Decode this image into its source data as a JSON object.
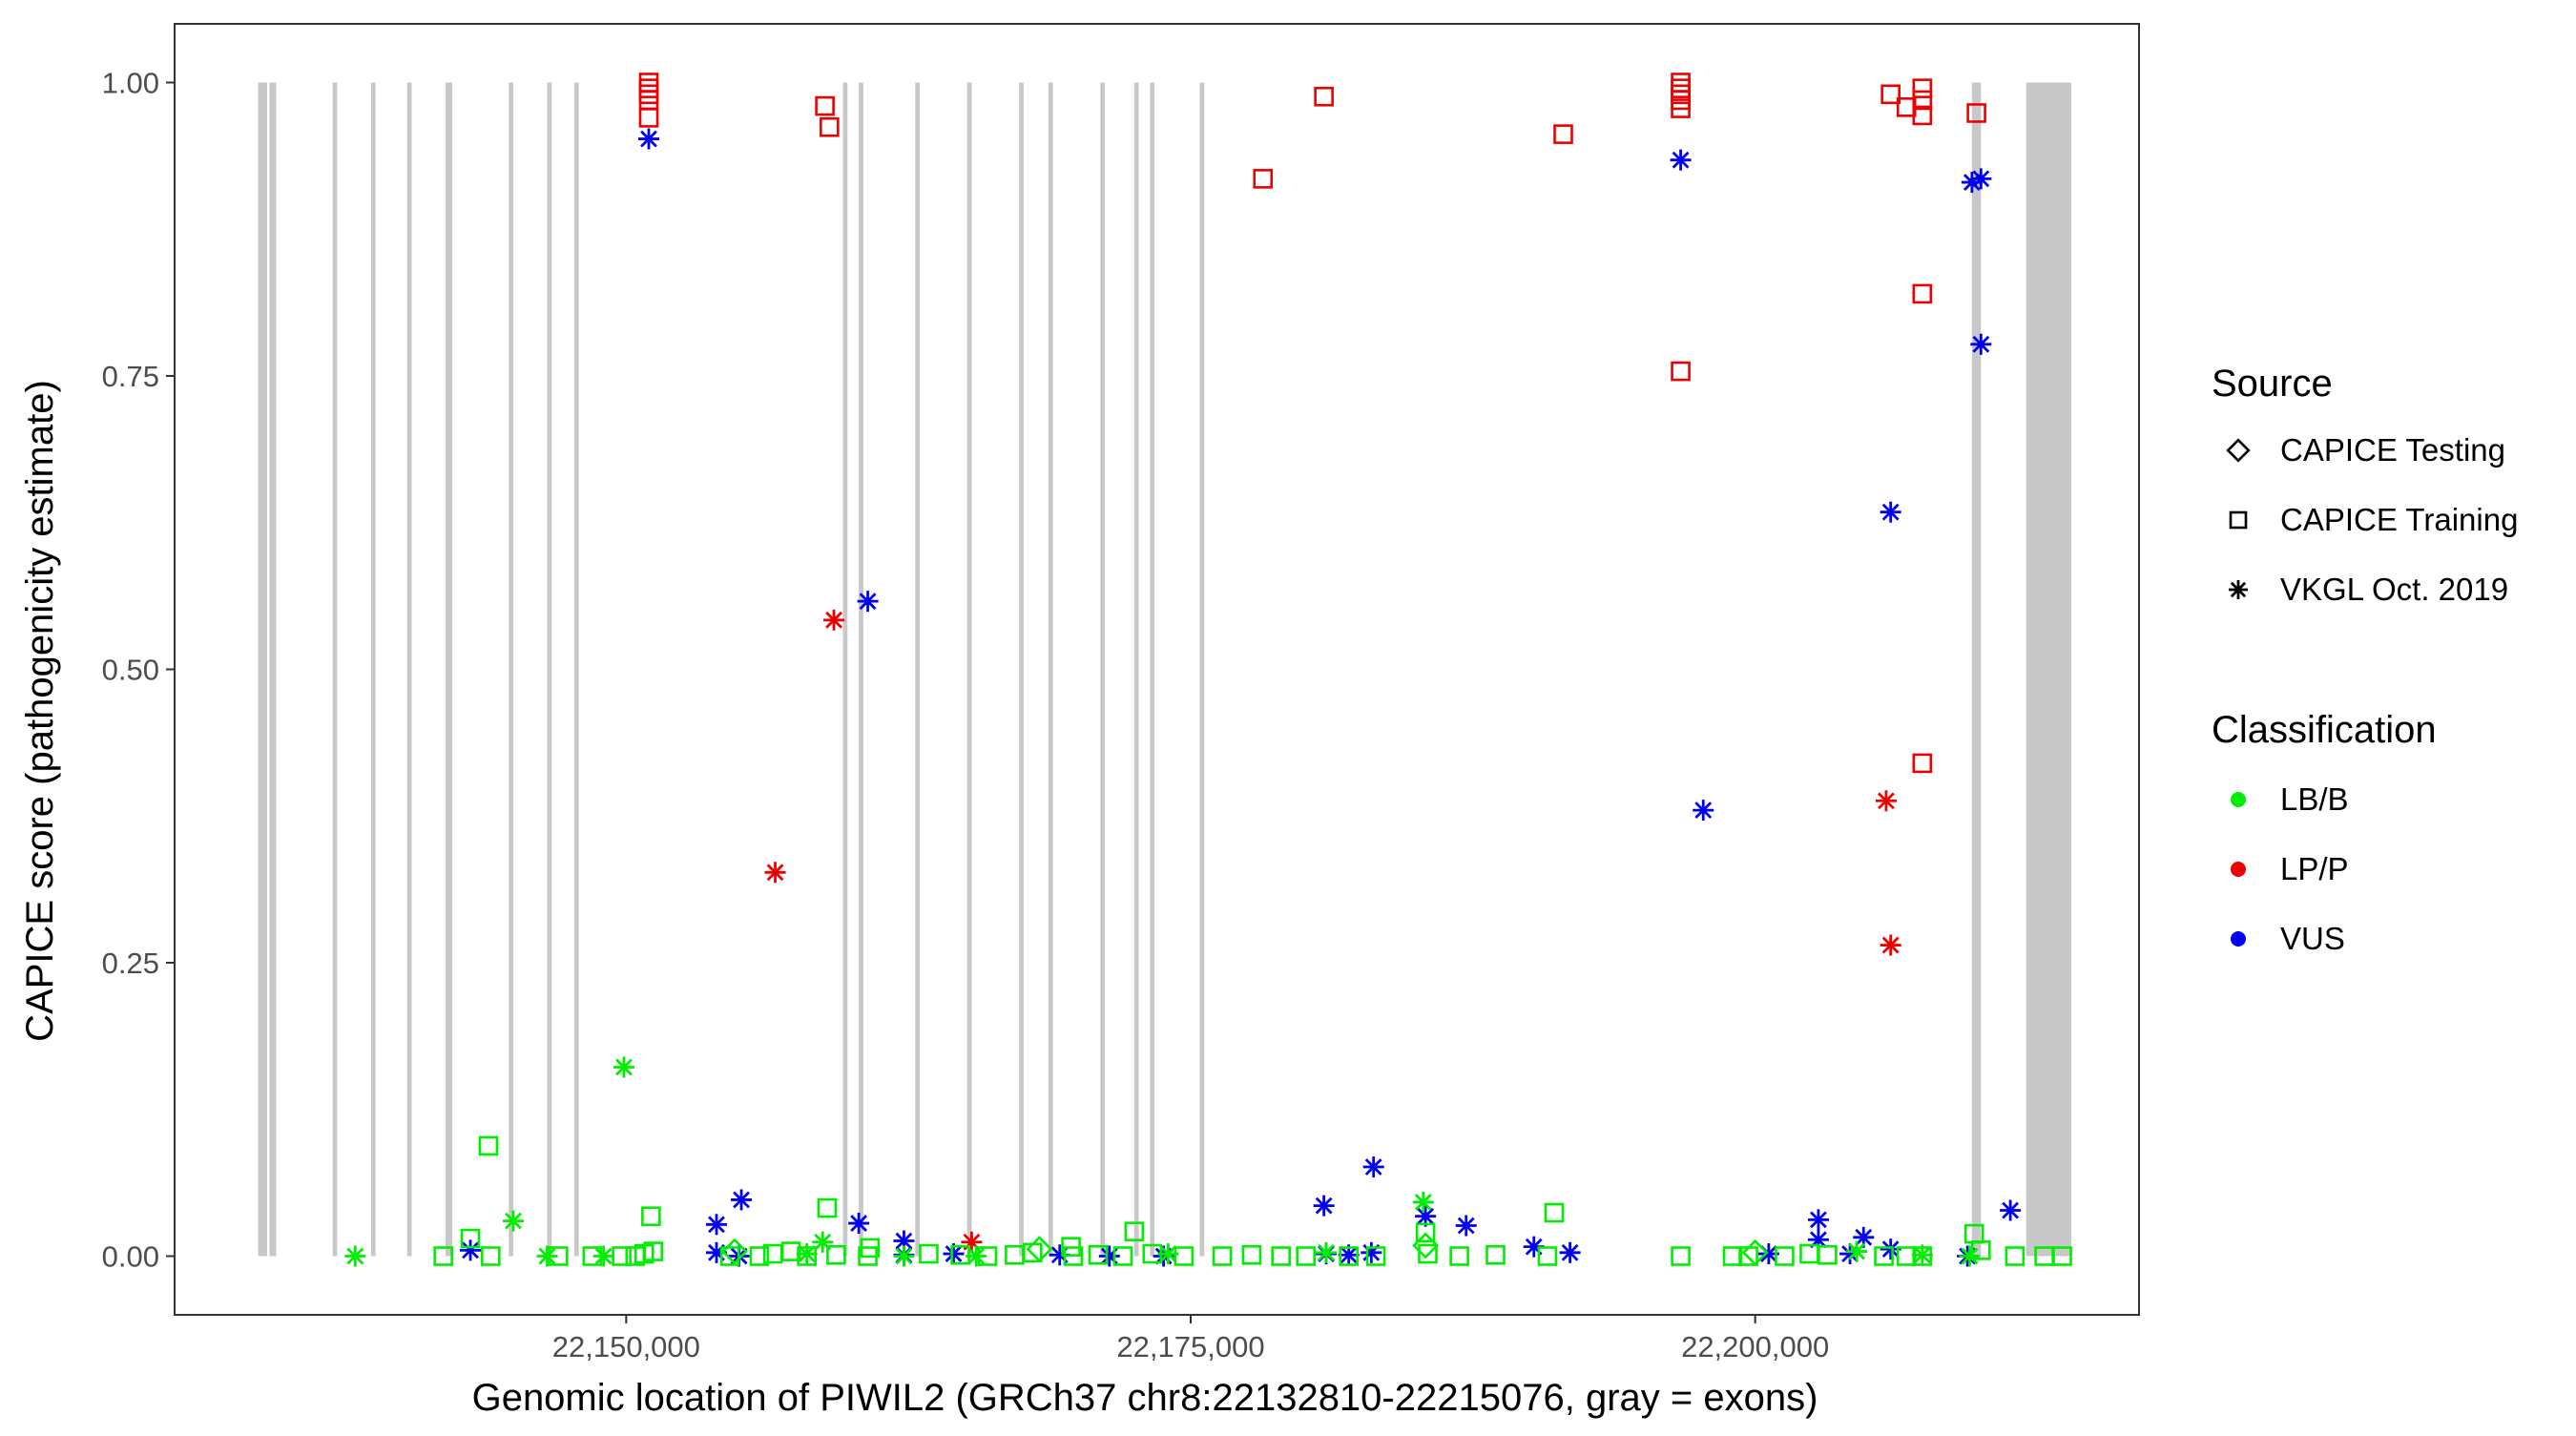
{
  "chart_data": {
    "type": "scatter",
    "title": "",
    "xlabel": "Genomic location of PIWIL2 (GRCh37 chr8:22132810-22215076, gray = exons)",
    "ylabel": "CAPICE score (pathogenicity estimate)",
    "xlim": [
      22130000,
      22217000
    ],
    "ylim": [
      -0.05,
      1.05
    ],
    "x_ticks": [
      22150000,
      22175000,
      22200000
    ],
    "x_tick_labels": [
      "22,150,000",
      "22,175,000",
      "22,200,000"
    ],
    "y_ticks": [
      0,
      0.25,
      0.5,
      0.75,
      1.0
    ],
    "y_tick_labels": [
      "0.00",
      "0.25",
      "0.50",
      "0.75",
      "1.00"
    ],
    "grid": false,
    "legend_position": "right",
    "exons": [
      [
        22133700,
        22134100
      ],
      [
        22134200,
        22134500
      ],
      [
        22137000,
        22137200
      ],
      [
        22138700,
        22138900
      ],
      [
        22140300,
        22140500
      ],
      [
        22142000,
        22142300
      ],
      [
        22144800,
        22145000
      ],
      [
        22146500,
        22146700
      ],
      [
        22147700,
        22147900
      ],
      [
        22159600,
        22159800
      ],
      [
        22160300,
        22160500
      ],
      [
        22162800,
        22163000
      ],
      [
        22165100,
        22165300
      ],
      [
        22167400,
        22167600
      ],
      [
        22168700,
        22168900
      ],
      [
        22171000,
        22171200
      ],
      [
        22172500,
        22172700
      ],
      [
        22173200,
        22173400
      ],
      [
        22175400,
        22175600
      ],
      [
        22209600,
        22210000
      ],
      [
        22212000,
        22214000
      ]
    ],
    "legends": [
      {
        "title": "Source",
        "entries": [
          {
            "label": "CAPICE Testing",
            "shape": "diamond"
          },
          {
            "label": "CAPICE Training",
            "shape": "square"
          },
          {
            "label": "VKGL Oct. 2019",
            "shape": "asterisk"
          }
        ]
      },
      {
        "title": "Classification",
        "entries": [
          {
            "label": "LB/B",
            "color": "#00EE00"
          },
          {
            "label": "LP/P",
            "color": "#EE0000"
          },
          {
            "label": "VUS",
            "color": "#0000EE"
          }
        ]
      }
    ],
    "colors": {
      "LB/B": "#00EE00",
      "LP/P": "#EE0000",
      "VUS": "#0000EE"
    },
    "series": [
      {
        "name": "LP/P - CAPICE Training",
        "source": "CAPICE Training",
        "classification": "LP/P",
        "points": [
          [
            22151000,
            1.0
          ],
          [
            22151000,
            0.995
          ],
          [
            22151000,
            0.99
          ],
          [
            22151000,
            0.985
          ],
          [
            22151000,
            0.97
          ],
          [
            22158800,
            0.98
          ],
          [
            22159000,
            0.962
          ],
          [
            22178200,
            0.918
          ],
          [
            22180900,
            0.988
          ],
          [
            22191500,
            0.956
          ],
          [
            22196700,
            1.0
          ],
          [
            22196700,
            0.995
          ],
          [
            22196700,
            0.99
          ],
          [
            22196700,
            0.985
          ],
          [
            22196700,
            0.978
          ],
          [
            22196700,
            0.754
          ],
          [
            22206000,
            0.99
          ],
          [
            22206700,
            0.979
          ],
          [
            22207400,
            0.972
          ],
          [
            22207400,
            0.985
          ],
          [
            22207400,
            0.995
          ],
          [
            22209800,
            0.974
          ],
          [
            22207400,
            0.82
          ],
          [
            22207400,
            0.42
          ]
        ]
      },
      {
        "name": "LP/P - VKGL Oct. 2019",
        "source": "VKGL Oct. 2019",
        "classification": "LP/P",
        "points": [
          [
            22156600,
            0.327
          ],
          [
            22159200,
            0.542
          ],
          [
            22165300,
            0.012
          ],
          [
            22205800,
            0.388
          ],
          [
            22206000,
            0.265
          ]
        ]
      },
      {
        "name": "VUS - VKGL Oct. 2019",
        "source": "VKGL Oct. 2019",
        "classification": "VUS",
        "points": [
          [
            22151000,
            0.952
          ],
          [
            22160700,
            0.558
          ],
          [
            22196700,
            0.934
          ],
          [
            22197700,
            0.38
          ],
          [
            22206000,
            0.634
          ],
          [
            22209600,
            0.915
          ],
          [
            22210000,
            0.918
          ],
          [
            22210000,
            0.777
          ],
          [
            22143100,
            0.005
          ],
          [
            22154000,
            0.027
          ],
          [
            22155100,
            0.048
          ],
          [
            22154000,
            0.003
          ],
          [
            22155000,
            0.0
          ],
          [
            22160300,
            0.028
          ],
          [
            22162300,
            0.013
          ],
          [
            22162300,
            0.001
          ],
          [
            22164500,
            0.002
          ],
          [
            22169200,
            0.001
          ],
          [
            22171400,
            0.0
          ],
          [
            22173800,
            0.0
          ],
          [
            22180900,
            0.043
          ],
          [
            22181000,
            0.002
          ],
          [
            22182000,
            0.001
          ],
          [
            22183100,
            0.076
          ],
          [
            22183000,
            0.003
          ],
          [
            22185400,
            0.034
          ],
          [
            22187200,
            0.026
          ],
          [
            22190200,
            0.008
          ],
          [
            22191800,
            0.003
          ],
          [
            22200600,
            0.002
          ],
          [
            22202800,
            0.031
          ],
          [
            22202800,
            0.014
          ],
          [
            22204800,
            0.016
          ],
          [
            22204200,
            0.002
          ],
          [
            22206000,
            0.006
          ],
          [
            22209400,
            0.0
          ],
          [
            22211300,
            0.039
          ]
        ]
      },
      {
        "name": "LB/B - VKGL Oct. 2019",
        "source": "VKGL Oct. 2019",
        "classification": "LB/B",
        "points": [
          [
            22149900,
            0.161
          ],
          [
            22138000,
            0.0
          ],
          [
            22145000,
            0.03
          ],
          [
            22146500,
            0.0
          ],
          [
            22149000,
            0.0
          ],
          [
            22158000,
            0.002
          ],
          [
            22158700,
            0.012
          ],
          [
            22162300,
            0.0
          ],
          [
            22165500,
            0.0
          ],
          [
            22174000,
            0.002
          ],
          [
            22181000,
            0.003
          ],
          [
            22185300,
            0.046
          ],
          [
            22204500,
            0.004
          ],
          [
            22207400,
            0.001
          ],
          [
            22209500,
            0.0
          ]
        ]
      },
      {
        "name": "LB/B - CAPICE Training",
        "source": "CAPICE Training",
        "classification": "LB/B",
        "points": [
          [
            22143900,
            0.094
          ],
          [
            22151100,
            0.034
          ],
          [
            22158900,
            0.041
          ],
          [
            22191100,
            0.037
          ],
          [
            22143100,
            0.015
          ],
          [
            22160800,
            0.007
          ],
          [
            22169700,
            0.008
          ],
          [
            22172500,
            0.021
          ],
          [
            22185400,
            0.02
          ],
          [
            22209700,
            0.019
          ],
          [
            22210000,
            0.005
          ],
          [
            22141900,
            0.0
          ],
          [
            22144000,
            0.0
          ],
          [
            22147000,
            0.0
          ],
          [
            22148500,
            0.0
          ],
          [
            22149800,
            0.0
          ],
          [
            22150400,
            0.0
          ],
          [
            22150800,
            0.002
          ],
          [
            22151200,
            0.004
          ],
          [
            22154600,
            0.0
          ],
          [
            22155900,
            0.0
          ],
          [
            22156500,
            0.002
          ],
          [
            22157300,
            0.004
          ],
          [
            22158000,
            0.0
          ],
          [
            22159300,
            0.001
          ],
          [
            22160700,
            0.0
          ],
          [
            22163400,
            0.002
          ],
          [
            22164800,
            0.001
          ],
          [
            22166000,
            0.0
          ],
          [
            22167200,
            0.001
          ],
          [
            22168000,
            0.003
          ],
          [
            22169800,
            0.0
          ],
          [
            22170900,
            0.001
          ],
          [
            22172000,
            0.0
          ],
          [
            22173300,
            0.002
          ],
          [
            22174700,
            0.0
          ],
          [
            22176400,
            0.0
          ],
          [
            22177700,
            0.001
          ],
          [
            22179000,
            0.0
          ],
          [
            22180100,
            0.0
          ],
          [
            22182000,
            0.0
          ],
          [
            22183200,
            0.0
          ],
          [
            22185500,
            0.002
          ],
          [
            22186900,
            0.0
          ],
          [
            22188500,
            0.001
          ],
          [
            22190800,
            0.0
          ],
          [
            22196700,
            0.0
          ],
          [
            22199000,
            0.0
          ],
          [
            22199700,
            0.0
          ],
          [
            22201300,
            0.0
          ],
          [
            22202400,
            0.002
          ],
          [
            22203200,
            0.001
          ],
          [
            22205700,
            0.0
          ],
          [
            22206700,
            0.0
          ],
          [
            22207400,
            0.0
          ],
          [
            22211500,
            0.0
          ],
          [
            22212800,
            0.0
          ],
          [
            22213600,
            0.0
          ]
        ]
      },
      {
        "name": "LB/B - CAPICE Testing",
        "source": "CAPICE Testing",
        "classification": "LB/B",
        "points": [
          [
            22154800,
            0.004
          ],
          [
            22168300,
            0.006
          ],
          [
            22185400,
            0.009
          ],
          [
            22200000,
            0.003
          ]
        ]
      }
    ]
  }
}
